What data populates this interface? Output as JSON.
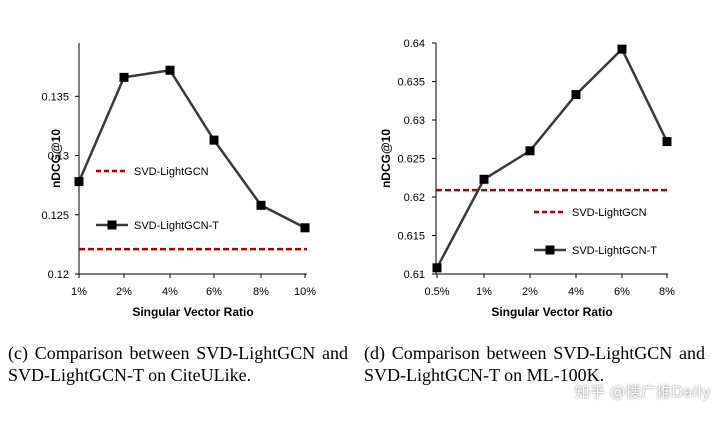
{
  "chart_data": [
    {
      "type": "line",
      "id": "c",
      "categories": [
        "1%",
        "2%",
        "4%",
        "6%",
        "8%",
        "10%"
      ],
      "series": [
        {
          "name": "SVD-LightGCN-T",
          "style": "solid-square",
          "values": [
            0.1278,
            0.1366,
            0.1372,
            0.1313,
            0.1258,
            0.1239
          ]
        },
        {
          "name": "SVD-LightGCN",
          "style": "dashed",
          "values": [
            0.1221,
            0.1221,
            0.1221,
            0.1221,
            0.1221,
            0.1221
          ]
        }
      ],
      "yticks": [
        "0.12",
        "0.125",
        "0.13",
        "0.135"
      ],
      "ylim": [
        0.12,
        0.1395
      ],
      "xlabel": "Singular Vector Ratio",
      "ylabel": "nDCG@10",
      "legend": [
        "SVD-LightGCN",
        "SVD-LightGCN-T"
      ]
    },
    {
      "type": "line",
      "id": "d",
      "categories": [
        "0.5%",
        "1%",
        "2%",
        "4%",
        "6%",
        "8%"
      ],
      "series": [
        {
          "name": "SVD-LightGCN-T",
          "style": "solid-square",
          "values": [
            0.6108,
            0.6223,
            0.626,
            0.6333,
            0.6392,
            0.6272
          ]
        },
        {
          "name": "SVD-LightGCN",
          "style": "dashed",
          "values": [
            0.6209,
            0.6209,
            0.6209,
            0.6209,
            0.6209,
            0.6209
          ]
        }
      ],
      "yticks": [
        "0.61",
        "0.615",
        "0.62",
        "0.625",
        "0.63",
        "0.635",
        "0.64"
      ],
      "ylim": [
        0.61,
        0.64
      ],
      "xlabel": "Singular Vector Ratio",
      "ylabel": "nDCG@10",
      "legend": [
        "SVD-LightGCN",
        "SVD-LightGCN-T"
      ]
    }
  ],
  "captions": {
    "c": "(c) Comparison between SVD-LightGCN and SVD-LightGCN-T on CiteULike.",
    "d": "(d) Comparison between SVD-LightGCN and SVD-LightGCN-T on ML-100K."
  },
  "watermark": "知乎 @搜广推Daily",
  "colors": {
    "line": "#3a3a3a",
    "marker": "#000000",
    "dashed": "#b00000",
    "axis": "#000000"
  }
}
